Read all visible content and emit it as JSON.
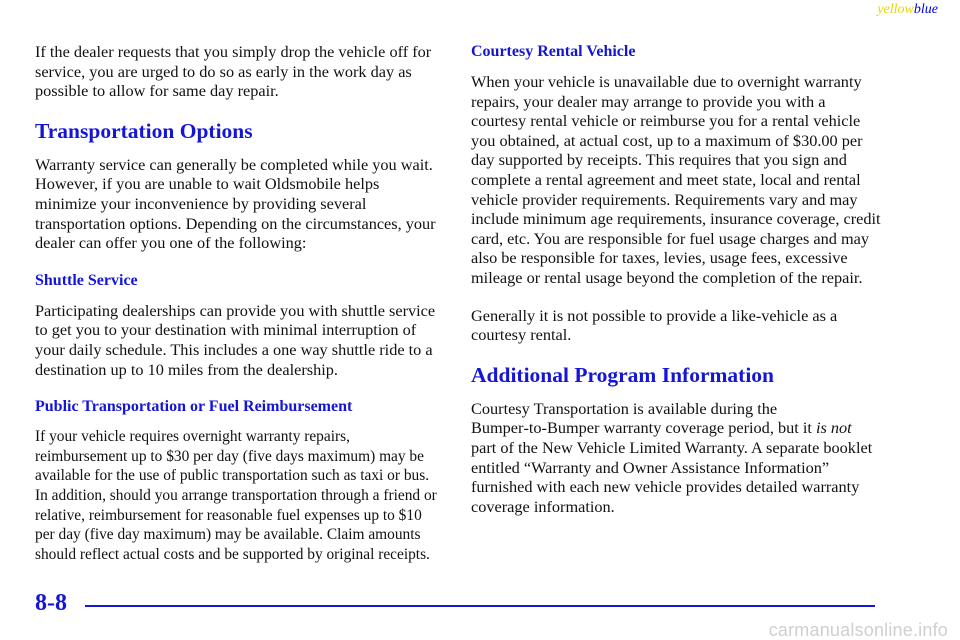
{
  "header": {
    "tag_yellow": "yellow",
    "tag_blue": "blue"
  },
  "left": {
    "intro": "If the dealer requests that you simply drop the vehicle off for service, you are urged to do so as early in the work day as possible to allow for same day repair.",
    "h_transport": "Transportation Options",
    "transport_text": "Warranty service can generally be completed while you wait. However, if you are unable to wait Oldsmobile helps minimize your inconvenience by providing several transportation options. Depending on the circumstances, your dealer can offer you one of the following:",
    "h_shuttle": "Shuttle Service",
    "shuttle_text": "Participating dealerships can provide you with shuttle service to get you to your destination with minimal interruption of your daily schedule. This includes a one way shuttle ride to a destination up to 10 miles from the dealership.",
    "h_public": "Public Transportation or Fuel Reimbursement",
    "public_text": "If your vehicle requires overnight warranty repairs, reimbursement up to $30 per day (five days maximum) may be available for the use of public transportation such as taxi or bus. In addition, should you arrange transportation through a friend or relative, reimbursement for reasonable fuel expenses up to $10 per day (five day maximum) may be available. Claim amounts should reflect actual costs and be supported by original receipts."
  },
  "right": {
    "h_courtesy": "Courtesy Rental Vehicle",
    "courtesy_text": "When your vehicle is unavailable due to overnight warranty repairs, your dealer may arrange to provide you with a courtesy rental vehicle or reimburse you for a rental vehicle you obtained, at actual cost, up to a maximum of $30.00 per day supported by receipts. This requires that you sign and complete a rental agreement and meet state, local and rental vehicle provider requirements. Requirements vary and may include minimum age requirements, insurance coverage, credit card, etc. You are responsible for fuel usage charges and may also be responsible for taxes, levies, usage fees, excessive mileage or rental usage beyond the completion of the repair.",
    "likevehicle_text": "Generally it is not possible to provide a like‑vehicle as a courtesy rental.",
    "h_additional": "Additional Program Information",
    "additional_pre": "Courtesy Transportation is available during the Bumper‑to‑Bumper warranty coverage period, but it ",
    "additional_em": "is not",
    "additional_post": " part of the New Vehicle Limited Warranty. A separate booklet entitled “Warranty and Owner Assistance Information” furnished with each new vehicle provides detailed warranty coverage information."
  },
  "footer": {
    "page_number": "8-8",
    "watermark": "carmanualsonline.info"
  }
}
